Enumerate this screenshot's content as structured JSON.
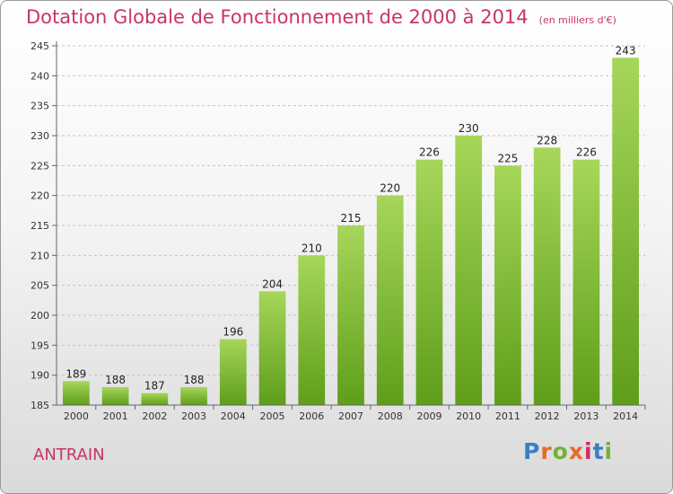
{
  "title": "Dotation Globale de Fonctionnement de 2000 à 2014",
  "subtitle": "(en milliers d'€)",
  "commune": "ANTRAIN",
  "logo": {
    "letters": [
      "P",
      "r",
      "o",
      "x",
      "i",
      "t",
      "i"
    ],
    "colors": [
      "#3a7fc4",
      "#e46b2a",
      "#72b23a",
      "#e46b2a",
      "#d42a6a",
      "#3a7fc4",
      "#72b23a"
    ]
  },
  "chart_data": {
    "type": "bar",
    "title": "Dotation Globale de Fonctionnement de 2000 à 2014",
    "subtitle": "(en milliers d'€)",
    "categories": [
      "2000",
      "2001",
      "2002",
      "2003",
      "2004",
      "2005",
      "2006",
      "2007",
      "2008",
      "2009",
      "2010",
      "2011",
      "2012",
      "2013",
      "2014"
    ],
    "values": [
      189,
      188,
      187,
      188,
      196,
      204,
      210,
      215,
      220,
      226,
      230,
      225,
      228,
      226,
      243
    ],
    "ylim": [
      185,
      245
    ],
    "yticks": [
      185,
      190,
      195,
      200,
      205,
      210,
      215,
      220,
      225,
      230,
      235,
      240,
      245
    ],
    "grid": true,
    "bar_color": "#8cc63f"
  }
}
